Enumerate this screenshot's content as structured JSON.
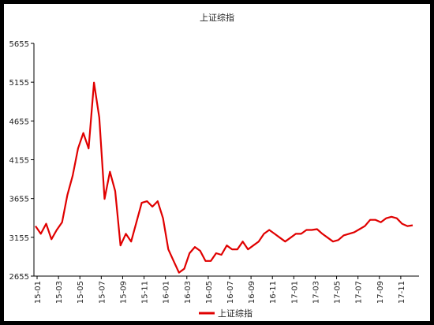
{
  "chart_data": {
    "type": "line",
    "title": "上证综指",
    "xlabel": "",
    "ylabel": "",
    "ylim": [
      2655,
      5655
    ],
    "yticks": [
      2655,
      3155,
      3655,
      4155,
      4655,
      5155,
      5655
    ],
    "grid": false,
    "legend_position": "bottom",
    "x_tick_labels": [
      "15-01",
      "15-03",
      "15-05",
      "15-07",
      "15-09",
      "15-11",
      "16-01",
      "16-03",
      "16-05",
      "16-07",
      "16-09",
      "16-11",
      "17-01",
      "17-03",
      "17-05",
      "17-07",
      "17-09",
      "17-11"
    ],
    "series": [
      {
        "name": "上证综指",
        "color": "#e00000",
        "x": [
          "15-01",
          "15-01b",
          "15-02",
          "15-02b",
          "15-03",
          "15-03b",
          "15-04",
          "15-04b",
          "15-05",
          "15-05b",
          "15-06",
          "15-06b",
          "15-07",
          "15-07b",
          "15-08",
          "15-08b",
          "15-09",
          "15-09b",
          "15-10",
          "15-10b",
          "15-11",
          "15-11b",
          "15-12",
          "15-12b",
          "16-01",
          "16-01b",
          "16-02",
          "16-02b",
          "16-03",
          "16-03b",
          "16-04",
          "16-04b",
          "16-05",
          "16-05b",
          "16-06",
          "16-06b",
          "16-07",
          "16-07b",
          "16-08",
          "16-08b",
          "16-09",
          "16-09b",
          "16-10",
          "16-10b",
          "16-11",
          "16-11b",
          "16-12",
          "16-12b",
          "17-01",
          "17-01b",
          "17-02",
          "17-02b",
          "17-03",
          "17-03b",
          "17-04",
          "17-04b",
          "17-05",
          "17-05b",
          "17-06",
          "17-06b",
          "17-07",
          "17-07b",
          "17-08",
          "17-08b",
          "17-09",
          "17-09b",
          "17-10",
          "17-10b",
          "17-11",
          "17-11b",
          "17-12",
          "17-12b"
        ],
        "values": [
          3300,
          3200,
          3330,
          3130,
          3250,
          3350,
          3700,
          3950,
          4300,
          4500,
          4300,
          5150,
          4700,
          3650,
          4000,
          3750,
          3050,
          3200,
          3100,
          3350,
          3600,
          3620,
          3550,
          3620,
          3400,
          3000,
          2850,
          2700,
          2750,
          2950,
          3030,
          2980,
          2850,
          2850,
          2950,
          2930,
          3050,
          3000,
          3000,
          3100,
          3000,
          3050,
          3100,
          3200,
          3250,
          3200,
          3150,
          3100,
          3150,
          3200,
          3200,
          3250,
          3250,
          3260,
          3200,
          3150,
          3100,
          3120,
          3180,
          3200,
          3220,
          3260,
          3300,
          3380,
          3380,
          3350,
          3400,
          3420,
          3400,
          3330,
          3300,
          3310
        ]
      }
    ]
  }
}
